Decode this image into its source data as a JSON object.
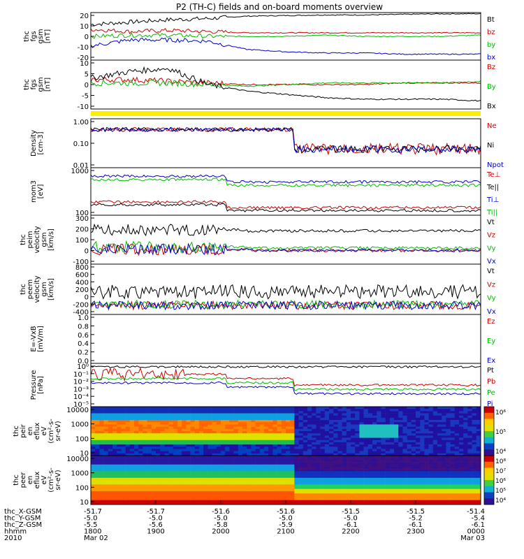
{
  "title": "P2 (TH-C) fields and on-board moments overview",
  "chart_data": [
    {
      "type": "line",
      "ylabel": [
        "thc",
        "fgs",
        "gsm",
        "[nT]"
      ],
      "yticks": [
        20,
        10,
        0,
        -10,
        -20
      ],
      "legend": [
        {
          "label": "Bt",
          "color": "#000000"
        },
        {
          "label": "bz",
          "color": "#cc0000"
        },
        {
          "label": "by",
          "color": "#00bb00"
        },
        {
          "label": "bx",
          "color": "#0000cc"
        }
      ],
      "series": [
        {
          "name": "Bt",
          "color": "#000000",
          "values": [
            10,
            12,
            14,
            15,
            17,
            17.5,
            18,
            18,
            18.5,
            19,
            19
          ]
        },
        {
          "name": "bz",
          "color": "#cc0000",
          "values": [
            6,
            4,
            5,
            4,
            3,
            3,
            3,
            3,
            3,
            3,
            3
          ]
        },
        {
          "name": "by",
          "color": "#00bb00",
          "values": [
            0,
            1,
            1,
            0,
            0,
            0,
            1,
            0,
            0,
            0,
            1
          ]
        },
        {
          "name": "bx",
          "color": "#0000cc",
          "values": [
            -8,
            -3,
            -3,
            -4,
            -11,
            -13,
            -14,
            -14,
            -15,
            -15,
            -15
          ]
        }
      ]
    },
    {
      "type": "line",
      "ylabel": [
        "thc",
        "fgs",
        "gsm",
        "[nT]"
      ],
      "yticks": [
        10,
        5,
        0,
        -5,
        -10
      ],
      "legend": [
        {
          "label": "Bz",
          "color": "#cc0000"
        },
        {
          "label": "By",
          "color": "#00bb00"
        },
        {
          "label": "Bx",
          "color": "#000000"
        }
      ],
      "series": [
        {
          "name": "Bz",
          "color": "#cc0000",
          "values": [
            3,
            3,
            2,
            1,
            0,
            0,
            0,
            0,
            1,
            1,
            1
          ]
        },
        {
          "name": "By",
          "color": "#00bb00",
          "values": [
            1,
            1,
            1,
            0,
            -1,
            0,
            1,
            1,
            1,
            1,
            2
          ]
        },
        {
          "name": "Bx",
          "color": "#000000",
          "values": [
            4,
            8,
            10,
            0,
            -4,
            -6,
            -8,
            -9,
            -9,
            -9,
            -10
          ]
        }
      ]
    },
    {
      "type": "line",
      "ylabel": [
        "Density",
        "[cm-3]"
      ],
      "yticks": [
        "1.00",
        "0.10",
        "0.01"
      ],
      "legend": [
        {
          "label": "Ne",
          "color": "#cc0000"
        },
        {
          "label": "Ni",
          "color": "#000000"
        },
        {
          "label": "Npot",
          "color": "#0000cc"
        }
      ]
    },
    {
      "type": "line",
      "ylabel": [
        "mom3",
        "[eV]"
      ],
      "yticks": [
        1000,
        100
      ],
      "legend": [
        {
          "label": "Te⊥",
          "color": "#cc0000"
        },
        {
          "label": "Te||",
          "color": "#000000"
        },
        {
          "label": "Ti⊥",
          "color": "#0000cc"
        },
        {
          "label": "Ti||",
          "color": "#00bb00"
        }
      ]
    },
    {
      "type": "line",
      "ylabel": [
        "thc",
        "peim",
        "velocity",
        "gsm",
        "[km/s]"
      ],
      "yticks": [
        300,
        200,
        100,
        0,
        -100
      ],
      "legend": [
        {
          "label": "Vt",
          "color": "#000000"
        },
        {
          "label": "Vz",
          "color": "#cc0000"
        },
        {
          "label": "Vy",
          "color": "#00bb00"
        },
        {
          "label": "Vx",
          "color": "#0000cc"
        }
      ]
    },
    {
      "type": "line",
      "ylabel": [
        "thc",
        "peem",
        "velocity",
        "gsm",
        "[km/s]"
      ],
      "yticks": [
        800,
        600,
        400,
        200,
        0,
        -200,
        -400
      ],
      "legend": [
        {
          "label": "Vt",
          "color": "#000000"
        },
        {
          "label": "Vz",
          "color": "#cc0000"
        },
        {
          "label": "Vy",
          "color": "#00bb00"
        },
        {
          "label": "Vx",
          "color": "#0000cc"
        }
      ]
    },
    {
      "type": "line",
      "ylabel": [
        "E=-VxB",
        "[mV/m]"
      ],
      "yticks": [
        "1.0",
        "0.8",
        "0.6",
        "0.4",
        "0.2",
        "0.0"
      ],
      "legend": [
        {
          "label": "Ez",
          "color": "#cc0000"
        },
        {
          "label": "Ey",
          "color": "#00bb00"
        },
        {
          "label": "Ex",
          "color": "#0000cc"
        }
      ]
    },
    {
      "type": "line",
      "ylabel": [
        "Pressure",
        "[nPa]"
      ],
      "yticks": [
        "10⁰",
        "10⁻¹",
        "10⁻²",
        "10⁻³",
        "10⁻⁴",
        "10⁻⁵"
      ],
      "legend": [
        {
          "label": "Pt",
          "color": "#000000"
        },
        {
          "label": "Pb",
          "color": "#cc0000"
        },
        {
          "label": "Pe",
          "color": "#00bb00"
        },
        {
          "label": "Pi",
          "color": "#0000cc"
        }
      ]
    },
    {
      "type": "heatmap",
      "ylabel": [
        "thc",
        "peir",
        "en",
        "eflux",
        "eV",
        "(cm²-s-",
        "sr-eV)"
      ],
      "yticks": [
        10000,
        1000,
        100,
        10
      ],
      "colorbar_ticks": [
        "10⁶",
        "10⁵",
        "10⁴"
      ]
    },
    {
      "type": "heatmap",
      "ylabel": [
        "thc",
        "peer",
        "en",
        "eflux",
        "eV",
        "(cm²-s-",
        "sr-eV)"
      ],
      "yticks": [
        10000,
        1000,
        100,
        10
      ],
      "colorbar_ticks": [
        "10⁸",
        "10⁷",
        "10⁶",
        "10⁵",
        "10⁴"
      ]
    }
  ],
  "xaxis": {
    "rows": [
      {
        "label": "thc_X-GSM",
        "values": [
          "-51.7",
          "-51.7",
          "-51.6",
          "-51.6",
          "-51.5",
          "-51.5",
          "-51.4"
        ]
      },
      {
        "label": "thc_Y-GSM",
        "values": [
          "-5.0",
          "-5.0",
          "-5.0",
          "-5.0",
          "-5.0",
          "-5.2",
          "-5.4"
        ]
      },
      {
        "label": "thc_Z-GSM",
        "values": [
          "-5.5",
          "-5.6",
          "-5.8",
          "-5.9",
          "-6.1",
          "-6.1",
          "-6.1"
        ]
      },
      {
        "label": "hhmm",
        "values": [
          "1800",
          "1900",
          "2000",
          "2100",
          "2200",
          "2300",
          "0000"
        ]
      },
      {
        "label": "2010",
        "values": [
          "Mar 02",
          "",
          "",
          "",
          "",
          "",
          "Mar 03"
        ]
      }
    ]
  }
}
